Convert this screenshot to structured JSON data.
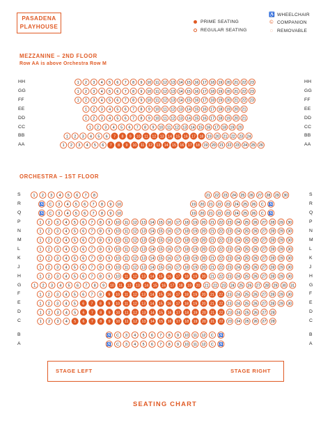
{
  "logo": {
    "line1": "PASADENA",
    "line2": "PLAYHOUSE"
  },
  "legend": {
    "prime": "PRIME SEATING",
    "regular": "REGULAR SEATING",
    "wheelchair": "WHEELCHAIR",
    "companion": "COMPANION",
    "removable": "REMOVABLE"
  },
  "colors": {
    "accent": "#e05a24",
    "text": "#1a1a1a"
  },
  "icons": {
    "wheelchair": "wheelchair-icon",
    "companion": "companion-icon",
    "removable": "removable-icon"
  },
  "mezzanine": {
    "title": "MEZZANINE – 2ND FLOOR",
    "note": "Row AA is above Orchestra Row M",
    "rows": [
      {
        "label": "HH",
        "seats": [
          "1-23"
        ],
        "prime": []
      },
      {
        "label": "GG",
        "seats": [
          "1-23"
        ],
        "prime": []
      },
      {
        "label": "FF",
        "seats": [
          "1-23"
        ],
        "prime": []
      },
      {
        "label": "EE",
        "seats": [
          "1-21"
        ],
        "prime": []
      },
      {
        "label": "DD",
        "seats": [
          "1-21"
        ],
        "prime": []
      },
      {
        "label": "CC",
        "seats": [
          "1-20"
        ],
        "prime": []
      },
      {
        "label": "BB",
        "seats": [
          "1-24"
        ],
        "prime": [
          "7-18"
        ]
      },
      {
        "label": "AA",
        "seats": [
          "1-26"
        ],
        "prime": [
          "7-18"
        ]
      }
    ]
  },
  "orchestra": {
    "title": "ORCHESTRA – 1ST FLOOR",
    "rows": [
      {
        "label": "S",
        "seats": [
          "1-8",
          "21-30"
        ],
        "prime": []
      },
      {
        "label": "R",
        "seats": [
          "W",
          "C",
          "3-10",
          "19-26",
          "C",
          "W"
        ],
        "prime": []
      },
      {
        "label": "Q",
        "seats": [
          "W",
          "C",
          "3-10",
          "19-26",
          "C",
          "W"
        ],
        "prime": []
      },
      {
        "label": "P",
        "seats": [
          "1-30"
        ],
        "prime": []
      },
      {
        "label": "N",
        "seats": [
          "1-30"
        ],
        "prime": []
      },
      {
        "label": "M",
        "seats": [
          "1-30"
        ],
        "prime": []
      },
      {
        "label": "L",
        "seats": [
          "1-30"
        ],
        "prime": []
      },
      {
        "label": "K",
        "seats": [
          "1-30"
        ],
        "prime": []
      },
      {
        "label": "J",
        "seats": [
          "1-30"
        ],
        "prime": []
      },
      {
        "label": "H",
        "seats": [
          "1-30"
        ],
        "prime": [
          "11-20"
        ]
      },
      {
        "label": "G",
        "seats": [
          "1-31"
        ],
        "prime": [
          "10-20"
        ]
      },
      {
        "label": "F",
        "seats": [
          "1-30"
        ],
        "prime": [
          "9-22"
        ]
      },
      {
        "label": "E",
        "seats": [
          "1-30"
        ],
        "prime": [
          "6-22"
        ]
      },
      {
        "label": "D",
        "seats": [
          "1-28"
        ],
        "prime": [
          "6-22"
        ]
      },
      {
        "label": "C",
        "seats": [
          "1-28"
        ],
        "prime": [
          "5-22"
        ]
      },
      {
        "label": "B",
        "seats": [
          "W",
          "C",
          "3-12",
          "C",
          "W"
        ],
        "prime": []
      },
      {
        "label": "A",
        "seats": [
          "W",
          "C",
          "3-12",
          "C",
          "W"
        ],
        "prime": []
      }
    ]
  },
  "stage": {
    "left": "STAGE LEFT",
    "right": "STAGE RIGHT"
  },
  "footer": "SEATING CHART"
}
